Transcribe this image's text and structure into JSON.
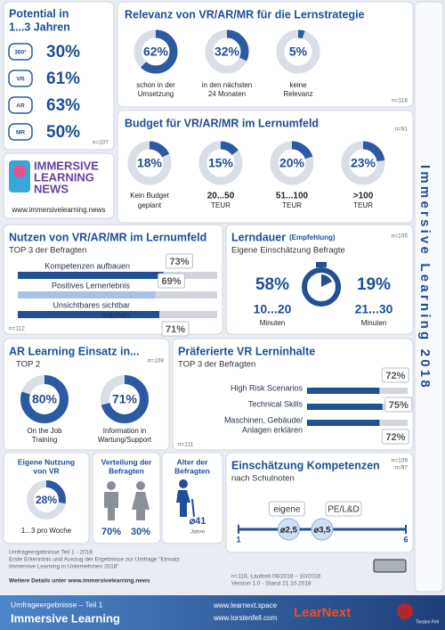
{
  "potential": {
    "title_lines": [
      "Potential in",
      "1...3 Jahren"
    ],
    "n": "n=107",
    "items": [
      {
        "icon": "360°",
        "label": "30%"
      },
      {
        "icon": "VR",
        "label": "61%"
      },
      {
        "icon": "AR",
        "label": "63%"
      },
      {
        "icon": "MR",
        "label": "50%"
      }
    ]
  },
  "relevanz": {
    "title": "Relevanz von VR/AR/MR für die Lernstrategie",
    "n": "n=118",
    "items": [
      {
        "value": 62,
        "label": "62%",
        "caption_lines": [
          "schon in der",
          "Umsetzung"
        ]
      },
      {
        "value": 32,
        "label": "32%",
        "caption_lines": [
          "in den nächsten",
          "24 Monaten"
        ]
      },
      {
        "value": 5,
        "label": "5%",
        "caption_lines": [
          "keine",
          "Relevanz"
        ]
      }
    ]
  },
  "budget": {
    "title": "Budget für VR/AR/MR im Lernumfeld",
    "n": "n=91",
    "items": [
      {
        "value": 18,
        "label": "18%",
        "caption_lines": [
          "Kein Budget",
          "geplant"
        ]
      },
      {
        "value": 15,
        "label": "15%",
        "caption_lines": [
          "20...50",
          "TEUR"
        ]
      },
      {
        "value": 20,
        "label": "20%",
        "caption_lines": [
          "51...100",
          "TEUR"
        ]
      },
      {
        "value": 23,
        "label": "23%",
        "caption_lines": [
          ">100",
          "TEUR"
        ]
      }
    ]
  },
  "logo": {
    "name_lines": [
      "IMMERSIVE",
      "LEARNING",
      "NEWS"
    ],
    "url": "www.immersivelearning.news"
  },
  "side_title": "Immersive Learning 2018",
  "nutzen": {
    "title": "Nutzen von VR/AR/MR im Lernumfeld",
    "subtitle": "TOP 3 der Befragten",
    "n": "n=112",
    "bars": [
      {
        "label_lines": [
          "Kompetenzen aufbauen"
        ],
        "value": 73,
        "value_label": "73%"
      },
      {
        "label_lines": [
          "Positives Lernerlebnis"
        ],
        "value": 69,
        "value_label": "69%"
      },
      {
        "label_lines": [
          "Unsichtbares sichtbar",
          "machen"
        ],
        "value": 71,
        "value_label": "71%"
      }
    ]
  },
  "lerndauer": {
    "title": "Lerndauer",
    "title_note": "(Empfehlung)",
    "n": "n=105",
    "subtitle": "Eigene Einschätzung Befragte",
    "items": [
      {
        "share": "58%",
        "range": "10...20",
        "unit": "Minuten"
      },
      {
        "share": "19%",
        "range": "21...30",
        "unit": "Minuten"
      }
    ]
  },
  "ar": {
    "title": "AR Learning Einsatz in...",
    "subtitle": "TOP 2",
    "n": "n=108",
    "items": [
      {
        "value": 80,
        "label": "80%",
        "caption_lines": [
          "On the Job",
          "Training"
        ]
      },
      {
        "value": 71,
        "label": "71%",
        "caption_lines": [
          "Information in",
          "Wartung/Support"
        ]
      }
    ]
  },
  "vr": {
    "title": "Präferierte VR Lerninhalte",
    "subtitle": "TOP 3 der Befragten",
    "n": "n=111",
    "bars": [
      {
        "label_lines": [
          "High Risk Scenarios"
        ],
        "value": 72,
        "value_label": "72%"
      },
      {
        "label_lines": [
          "Technical Skills"
        ],
        "value": 75,
        "value_label": "75%"
      },
      {
        "label_lines": [
          "Maschinen, Gebäude/",
          "Anlagen erklären"
        ],
        "value": 72,
        "value_label": "72%"
      }
    ]
  },
  "nutzung": {
    "title_lines": [
      "Eigene Nutzung",
      "von VR"
    ],
    "value": 28,
    "label": "28%",
    "caption": "1...3 pro Woche"
  },
  "verteilung": {
    "title_lines": [
      "Verteilung der",
      "Befragten"
    ],
    "male": "70%",
    "female": "30%"
  },
  "alter": {
    "title_lines": [
      "Alter der",
      "Befragten"
    ],
    "value": "⌀41",
    "unit": "Jahre"
  },
  "kompetenz": {
    "title": "Einschätzung Kompetenzen",
    "subtitle": "nach Schulnoten",
    "n": [
      "n=109",
      "n=97"
    ],
    "scale": {
      "min": 1,
      "max": 6
    },
    "markers": [
      {
        "name": "eigene",
        "value": 2.5,
        "label": "⌀2,5"
      },
      {
        "name": "PE/L&D",
        "value": 3.5,
        "label": "⌀3,5"
      }
    ]
  },
  "notes": {
    "lines": [
      "Umfrageergebnisse Teil 1 - 2018",
      "Erste Erkenntnis und  Auszug der Ergebnisse zur Umfrage “Einsatz",
      "Immersive Learning in Unternehmen 2018”"
    ],
    "details": "Weitere Details unter www.immersivelearning.news",
    "meta": [
      "n=118, Laufzeit 08/2018 – 10/2018",
      "Version 1.0 - Stand 21.10.2018"
    ]
  },
  "footer": {
    "subtitle": "Umfrageergebnisse – Teil 1",
    "title": "Immersive Learning",
    "links": [
      "www.learnext.space",
      "www.torstenfell.com"
    ],
    "brand": "LearNext",
    "partner": "Torsten Fell"
  }
}
